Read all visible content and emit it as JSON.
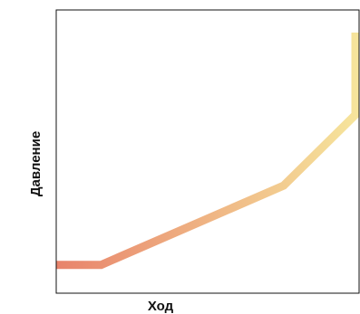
{
  "chart_data": {
    "type": "line",
    "title": "",
    "xlabel": "Ход",
    "ylabel": "Давление",
    "xlim": [
      0,
      100
    ],
    "ylim": [
      0,
      100
    ],
    "grid": false,
    "legend": "none",
    "color_start": "#e8836b",
    "color_end": "#f6e59c",
    "series": [
      {
        "x": [
          0,
          15,
          76,
          100,
          100
        ],
        "y": [
          10,
          10,
          38,
          63,
          92
        ]
      }
    ]
  }
}
